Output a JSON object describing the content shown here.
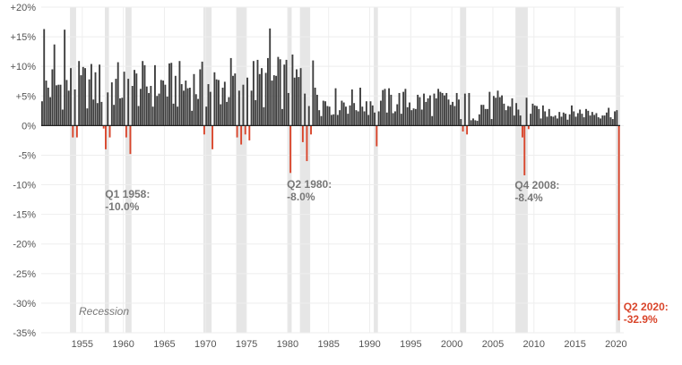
{
  "chart_data": {
    "type": "bar",
    "title": "",
    "xlabel": "",
    "ylabel": "",
    "x_range": [
      1950,
      2020.5
    ],
    "ylim": [
      -35,
      20
    ],
    "y_ticks": [
      20,
      15,
      10,
      5,
      0,
      -5,
      -10,
      -15,
      -20,
      -25,
      -30,
      -35
    ],
    "y_tick_labels": [
      "+20%",
      "+15%",
      "+10%",
      "+5%",
      "0%",
      "-5%",
      "-10%",
      "-15%",
      "-20%",
      "-25%",
      "-30%",
      "-35%"
    ],
    "x_ticks": [
      1955,
      1960,
      1965,
      1970,
      1975,
      1980,
      1985,
      1990,
      1995,
      2000,
      2005,
      2010,
      2015,
      2020
    ],
    "x_tick_labels": [
      "1955",
      "1960",
      "1965",
      "1970",
      "1975",
      "1980",
      "1985",
      "1990",
      "1995",
      "2000",
      "2005",
      "2010",
      "2015",
      "2020"
    ],
    "grid": true,
    "colors": {
      "positive": "#3d3d3d",
      "negative": "#d9452b",
      "recession": "#e6e6e6",
      "annotation": "#777777"
    },
    "legend": [
      {
        "name": "Recession",
        "position": "bottom-left"
      }
    ],
    "recessions": [
      [
        1953.5,
        1954.25
      ],
      [
        1957.75,
        1958.25
      ],
      [
        1960.25,
        1961.0
      ],
      [
        1969.75,
        1970.75
      ],
      [
        1973.75,
        1975.0
      ],
      [
        1980.0,
        1980.5
      ],
      [
        1981.5,
        1982.75
      ],
      [
        1990.5,
        1991.0
      ],
      [
        2001.0,
        2001.75
      ],
      [
        2007.75,
        2009.25
      ],
      [
        2020.0,
        2020.5
      ]
    ],
    "series": [
      {
        "name": "",
        "x": [],
        "values": []
      }
    ],
    "annotations": [
      {
        "x": 1958.0,
        "line1": "Q1 1958:",
        "line2": "-10.0%",
        "color": "#777777"
      },
      {
        "x": 1980.25,
        "line1": "Q2 1980:",
        "line2": "-8.0%",
        "color": "#777777"
      },
      {
        "x": 2008.75,
        "line1": "Q4 2008:",
        "line2": "-8.4%",
        "color": "#777777"
      },
      {
        "x": 2020.25,
        "line1": "Q2 2020:",
        "line2": "-32.9%",
        "color": "#d9452b"
      }
    ]
  }
}
